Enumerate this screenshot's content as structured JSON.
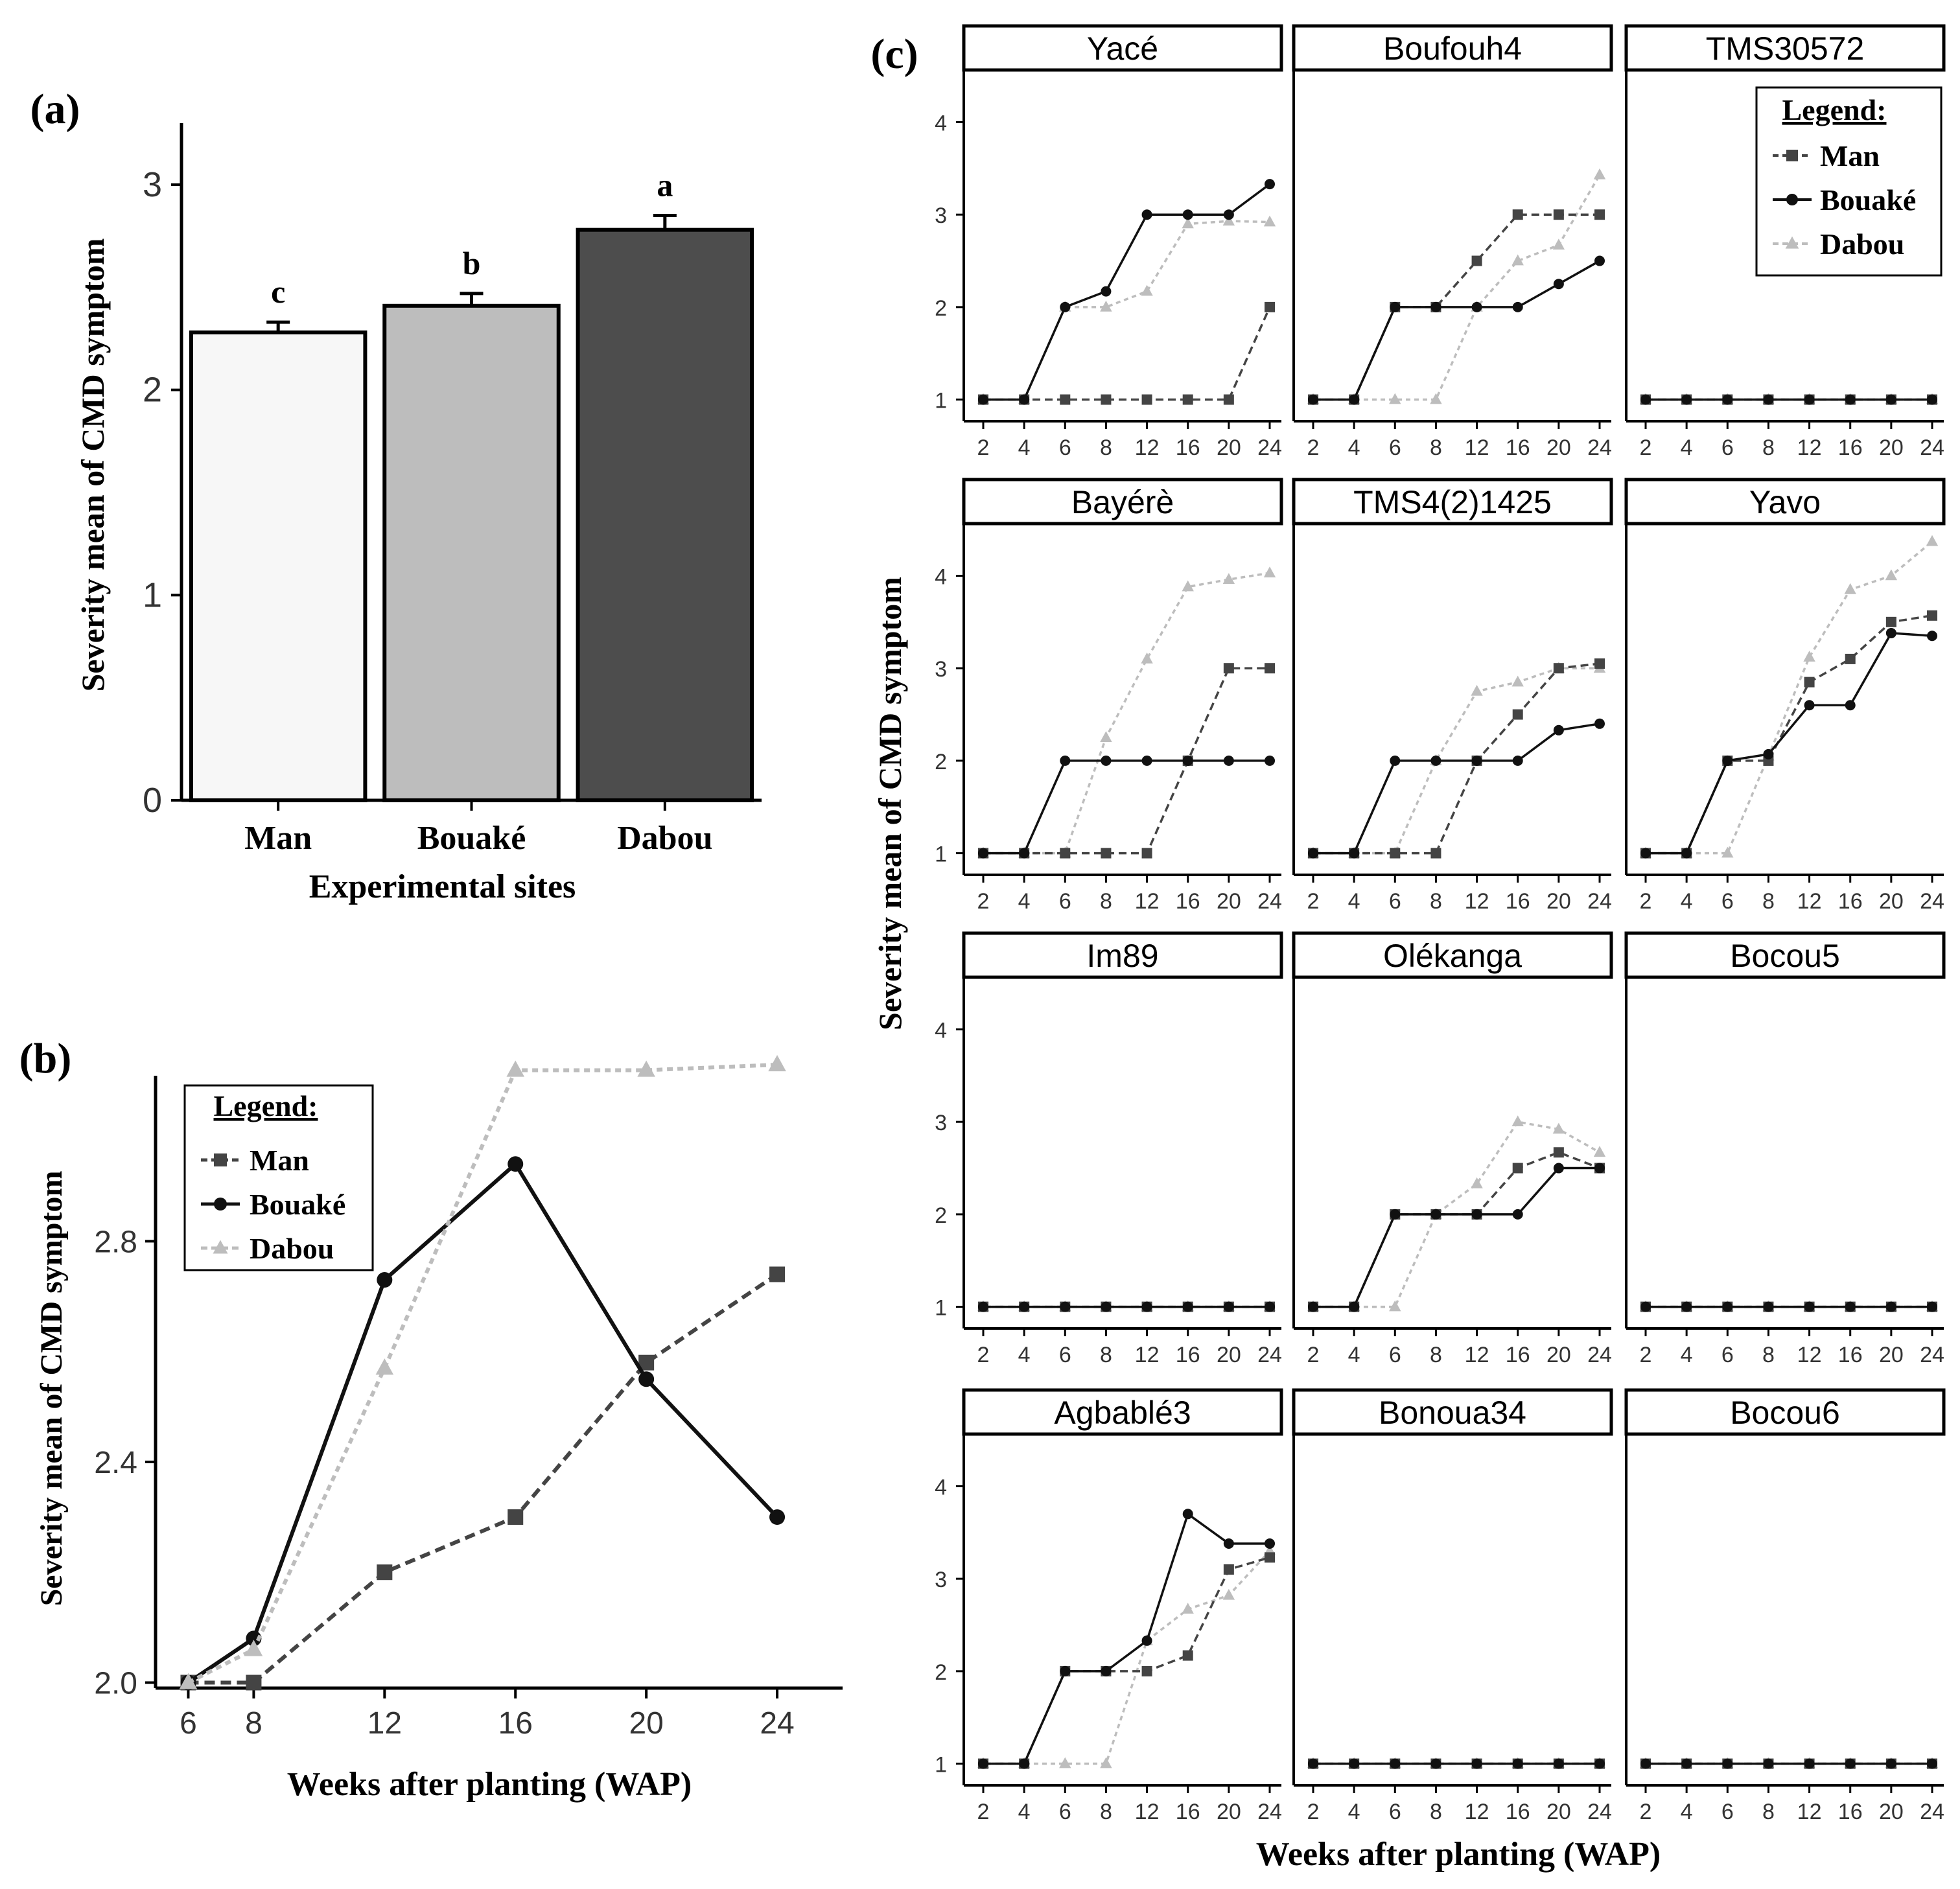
{
  "panel_labels": {
    "a": "(a)",
    "b": "(b)",
    "c": "(c)"
  },
  "series_styles": {
    "Man": {
      "color": "#444444",
      "dash": "dashed",
      "marker": "square"
    },
    "Bouaké": {
      "color": "#111111",
      "dash": "solid",
      "marker": "circle"
    },
    "Dabou": {
      "color": "#bdbdbd",
      "dash": "dotted",
      "marker": "triangle"
    }
  },
  "chart_data": [
    {
      "id": "a",
      "type": "bar",
      "title": "",
      "xlabel": "Experimental sites",
      "ylabel": "Severity mean of CMD symptom",
      "categories": [
        "Man",
        "Bouaké",
        "Dabou"
      ],
      "values": [
        2.28,
        2.41,
        2.78
      ],
      "errors": [
        0.05,
        0.06,
        0.07
      ],
      "letters": [
        "c",
        "b",
        "a"
      ],
      "bar_colors": [
        "#f7f7f7",
        "#bdbdbd",
        "#4d4d4d"
      ],
      "ylim": [
        0,
        3.3
      ],
      "yticks": [
        0,
        1,
        2,
        3
      ]
    },
    {
      "id": "b",
      "type": "line",
      "xlabel": "Weeks after planting (WAP)",
      "ylabel": "Severity mean of CMD symptom",
      "x": [
        6,
        8,
        12,
        16,
        20,
        24
      ],
      "xlim": [
        5,
        26
      ],
      "ylim": [
        1.99,
        3.1
      ],
      "yticks": [
        2.0,
        2.4,
        2.8
      ],
      "legend_title": "Legend:",
      "series": [
        {
          "name": "Man",
          "values": [
            2.0,
            2.0,
            2.2,
            2.3,
            2.58,
            2.74
          ]
        },
        {
          "name": "Bouaké",
          "values": [
            2.0,
            2.08,
            2.73,
            2.94,
            2.55,
            2.3
          ]
        },
        {
          "name": "Dabou",
          "values": [
            2.0,
            2.06,
            2.57,
            3.11,
            3.11,
            3.12
          ]
        }
      ]
    },
    {
      "id": "c",
      "type": "line",
      "xlabel": "Weeks after planting (WAP)",
      "ylabel": "Severity mean of CMD symptom",
      "x_ticks": [
        "2",
        "4",
        "6",
        "8",
        "12",
        "16",
        "20",
        "24"
      ],
      "yticks": [
        1,
        2,
        3,
        4
      ],
      "ylim": [
        0.85,
        4.55
      ],
      "legend_title": "Legend:",
      "facets": [
        {
          "name": "Yacé",
          "series": [
            {
              "name": "Man",
              "values": [
                1,
                1,
                1,
                1,
                1,
                1,
                1,
                2
              ]
            },
            {
              "name": "Bouaké",
              "values": [
                1,
                1,
                2,
                2.17,
                3,
                3,
                3,
                3.33
              ]
            },
            {
              "name": "Dabou",
              "values": [
                1,
                1,
                2,
                2,
                2.17,
                2.9,
                2.93,
                2.92
              ]
            }
          ]
        },
        {
          "name": "Boufouh4",
          "series": [
            {
              "name": "Man",
              "values": [
                1,
                1,
                2,
                2,
                2.5,
                3,
                3,
                3
              ]
            },
            {
              "name": "Bouaké",
              "values": [
                1,
                1,
                2,
                2,
                2,
                2,
                2.25,
                2.5
              ]
            },
            {
              "name": "Dabou",
              "values": [
                1,
                1,
                1,
                1,
                2,
                2.5,
                2.67,
                3.43
              ]
            }
          ]
        },
        {
          "name": "TMS30572",
          "series": [
            {
              "name": "Man",
              "values": [
                1,
                1,
                1,
                1,
                1,
                1,
                1,
                1
              ]
            },
            {
              "name": "Bouaké",
              "values": [
                1,
                1,
                1,
                1,
                1,
                1,
                1,
                1
              ]
            },
            {
              "name": "Dabou",
              "values": [
                1,
                1,
                1,
                1,
                1,
                1,
                1,
                1
              ]
            }
          ]
        },
        {
          "name": "Bayérè",
          "series": [
            {
              "name": "Man",
              "values": [
                1,
                1,
                1,
                1,
                1,
                2,
                3,
                3
              ]
            },
            {
              "name": "Bouaké",
              "values": [
                1,
                1,
                2,
                2,
                2,
                2,
                2,
                2
              ]
            },
            {
              "name": "Dabou",
              "values": [
                1,
                1,
                1,
                2.25,
                3.1,
                3.88,
                3.96,
                4.03
              ]
            }
          ]
        },
        {
          "name": "TMS4(2)1425",
          "series": [
            {
              "name": "Man",
              "values": [
                1,
                1,
                1,
                1,
                2,
                2.5,
                3,
                3.05
              ]
            },
            {
              "name": "Bouaké",
              "values": [
                1,
                1,
                2,
                2,
                2,
                2,
                2.33,
                2.4
              ]
            },
            {
              "name": "Dabou",
              "values": [
                1,
                1,
                1,
                2,
                2.75,
                2.85,
                3,
                3
              ]
            }
          ]
        },
        {
          "name": "Yavo",
          "series": [
            {
              "name": "Man",
              "values": [
                1,
                1,
                2,
                2,
                2.85,
                3.1,
                3.5,
                3.57
              ]
            },
            {
              "name": "Bouaké",
              "values": [
                1,
                1,
                2,
                2.07,
                2.6,
                2.6,
                3.38,
                3.35
              ]
            },
            {
              "name": "Dabou",
              "values": [
                1,
                1,
                1,
                2.05,
                3.12,
                3.85,
                4,
                4.37
              ]
            }
          ]
        },
        {
          "name": "Im89",
          "series": [
            {
              "name": "Man",
              "values": [
                1,
                1,
                1,
                1,
                1,
                1,
                1,
                1
              ]
            },
            {
              "name": "Bouaké",
              "values": [
                1,
                1,
                1,
                1,
                1,
                1,
                1,
                1
              ]
            },
            {
              "name": "Dabou",
              "values": [
                1,
                1,
                1,
                1,
                1,
                1,
                1,
                1
              ]
            }
          ]
        },
        {
          "name": "Olékanga",
          "series": [
            {
              "name": "Man",
              "values": [
                1,
                1,
                2,
                2,
                2,
                2.5,
                2.67,
                2.5
              ]
            },
            {
              "name": "Bouaké",
              "values": [
                1,
                1,
                2,
                2,
                2,
                2,
                2.5,
                2.5
              ]
            },
            {
              "name": "Dabou",
              "values": [
                1,
                1,
                1,
                2,
                2.33,
                3,
                2.92,
                2.67
              ]
            }
          ]
        },
        {
          "name": "Bocou5",
          "series": [
            {
              "name": "Man",
              "values": [
                1,
                1,
                1,
                1,
                1,
                1,
                1,
                1
              ]
            },
            {
              "name": "Bouaké",
              "values": [
                1,
                1,
                1,
                1,
                1,
                1,
                1,
                1
              ]
            },
            {
              "name": "Dabou",
              "values": [
                1,
                1,
                1,
                1,
                1,
                1,
                1,
                1
              ]
            }
          ]
        },
        {
          "name": "Agbablé3",
          "series": [
            {
              "name": "Man",
              "values": [
                1,
                1,
                2,
                2,
                2,
                2.17,
                3.1,
                3.23
              ]
            },
            {
              "name": "Bouaké",
              "values": [
                1,
                1,
                2,
                2,
                2.33,
                3.7,
                3.38,
                3.38
              ]
            },
            {
              "name": "Dabou",
              "values": [
                1,
                1,
                1,
                1,
                2.33,
                2.67,
                2.82,
                3.3
              ]
            }
          ]
        },
        {
          "name": "Bonoua34",
          "series": [
            {
              "name": "Man",
              "values": [
                1,
                1,
                1,
                1,
                1,
                1,
                1,
                1
              ]
            },
            {
              "name": "Bouaké",
              "values": [
                1,
                1,
                1,
                1,
                1,
                1,
                1,
                1
              ]
            },
            {
              "name": "Dabou",
              "values": [
                1,
                1,
                1,
                1,
                1,
                1,
                1,
                1
              ]
            }
          ]
        },
        {
          "name": "Bocou6",
          "series": [
            {
              "name": "Man",
              "values": [
                1,
                1,
                1,
                1,
                1,
                1,
                1,
                1
              ]
            },
            {
              "name": "Bouaké",
              "values": [
                1,
                1,
                1,
                1,
                1,
                1,
                1,
                1
              ]
            },
            {
              "name": "Dabou",
              "values": [
                1,
                1,
                1,
                1,
                1,
                1,
                1,
                1
              ]
            }
          ]
        }
      ]
    }
  ]
}
